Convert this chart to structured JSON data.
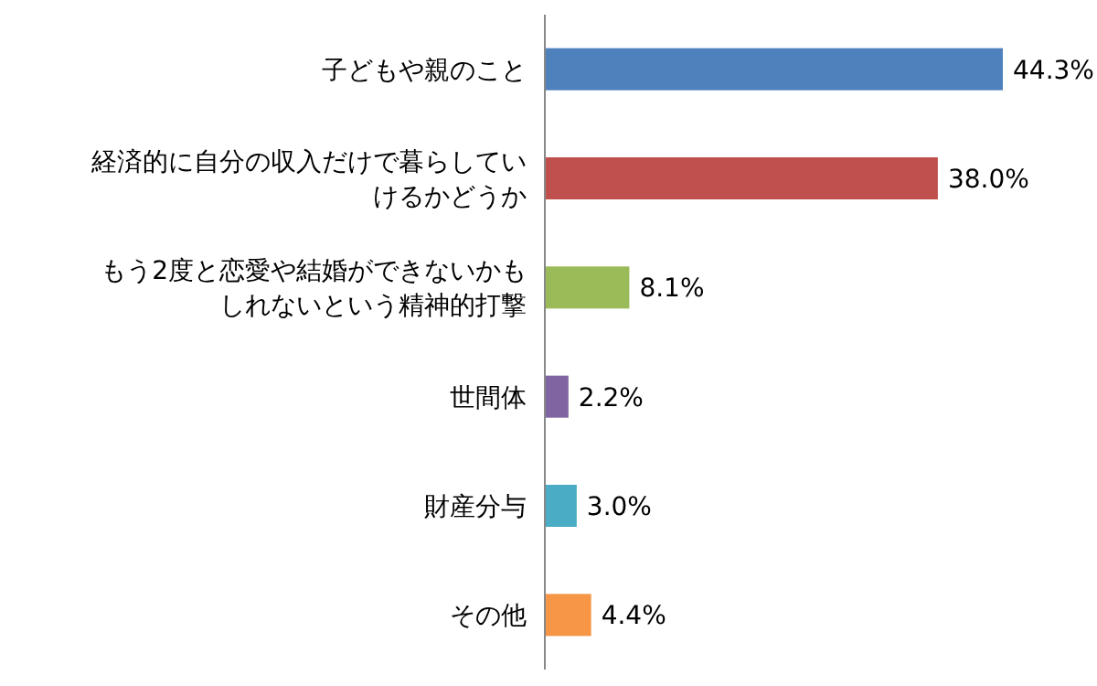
{
  "chart_data": {
    "type": "bar",
    "orientation": "horizontal",
    "categories": [
      "子どもや親のこと",
      "経済的に自分の収入だけで暮らしていけるかどうか",
      "もう2度と恋愛や結婚ができないかもしれないという精神的打撃",
      "世間体",
      "財産分与",
      "その他"
    ],
    "values": [
      44.3,
      38.0,
      8.1,
      2.2,
      3.0,
      4.4
    ],
    "value_labels": [
      "44.3%",
      "38.0%",
      "8.1%",
      "2.2%",
      "3.0%",
      "4.4%"
    ],
    "colors": [
      "#4f81bd",
      "#c0504d",
      "#9bbb59",
      "#8064a2",
      "#4bacc6",
      "#f79646"
    ]
  }
}
